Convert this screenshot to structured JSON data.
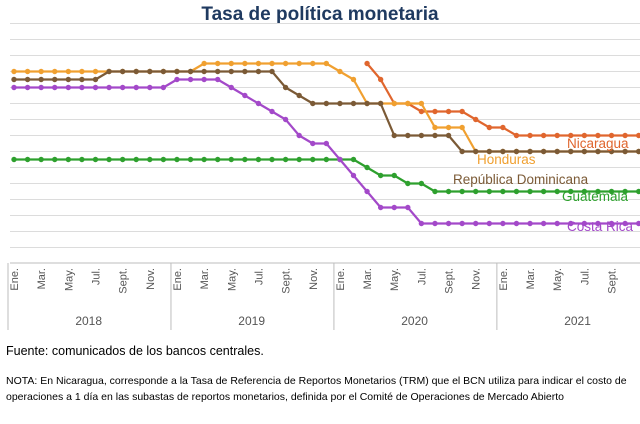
{
  "title": "Tasa de política monetaria",
  "source": "Fuente: comunicados de los bancos centrales.",
  "note": "NOTA: En Nicaragua, corresponde a la Tasa de Referencia de Reportos Monetarios (TRM) que el BCN utiliza para indicar el costo de operaciones a 1 día en las subastas de reportos monetarios, definida por el Comité de Operaciones de Mercado Abierto",
  "chart_data": {
    "type": "line",
    "title": "Tasa de política monetaria",
    "x": [
      "2018-01",
      "2018-02",
      "2018-03",
      "2018-04",
      "2018-05",
      "2018-06",
      "2018-07",
      "2018-08",
      "2018-09",
      "2018-10",
      "2018-11",
      "2018-12",
      "2019-01",
      "2019-02",
      "2019-03",
      "2019-04",
      "2019-05",
      "2019-06",
      "2019-07",
      "2019-08",
      "2019-09",
      "2019-10",
      "2019-11",
      "2019-12",
      "2020-01",
      "2020-02",
      "2020-03",
      "2020-04",
      "2020-05",
      "2020-06",
      "2020-07",
      "2020-08",
      "2020-09",
      "2020-10",
      "2020-11",
      "2020-12",
      "2021-01",
      "2021-02",
      "2021-03",
      "2021-04",
      "2021-05",
      "2021-06",
      "2021-07",
      "2021-08",
      "2021-09",
      "2021-10",
      "2021-11",
      "2021-12"
    ],
    "tick_labels": [
      "Ene.",
      "Mar.",
      "May.",
      "Jul.",
      "Sept.",
      "Nov.",
      "Ene.",
      "Mar.",
      "May.",
      "Jul.",
      "Sept.",
      "Nov.",
      "Ene.",
      "Mar.",
      "May.",
      "Jul.",
      "Sept.",
      "Nov.",
      "Ene.",
      "Mar.",
      "May.",
      "Jul.",
      "Sept."
    ],
    "years": [
      "2018",
      "2019",
      "2020",
      "2021"
    ],
    "ylim": [
      0,
      7
    ],
    "grid": true,
    "series": [
      {
        "name": "Nicaragua",
        "color": "#e0662e",
        "values": [
          null,
          null,
          null,
          null,
          null,
          null,
          null,
          null,
          null,
          null,
          null,
          null,
          null,
          null,
          null,
          null,
          null,
          null,
          null,
          null,
          null,
          null,
          null,
          null,
          null,
          null,
          5.75,
          5.25,
          4.5,
          4.5,
          4.25,
          4.25,
          4.25,
          4.25,
          4.0,
          3.75,
          3.75,
          3.5,
          3.5,
          3.5,
          3.5,
          3.5,
          3.5,
          3.5,
          3.5,
          3.5,
          3.5,
          3.5
        ]
      },
      {
        "name": "Honduras",
        "color": "#f0a030",
        "values": [
          5.5,
          5.5,
          5.5,
          5.5,
          5.5,
          5.5,
          5.5,
          5.5,
          5.5,
          5.5,
          5.5,
          5.5,
          5.5,
          5.5,
          5.75,
          5.75,
          5.75,
          5.75,
          5.75,
          5.75,
          5.75,
          5.75,
          5.75,
          5.75,
          5.5,
          5.25,
          4.5,
          4.5,
          4.5,
          4.5,
          4.5,
          3.75,
          3.75,
          3.75,
          3.0,
          3.0,
          3.0,
          3.0,
          3.0,
          3.0,
          3.0,
          3.0,
          3.0,
          3.0,
          3.0,
          3.0,
          3.0,
          3.0
        ]
      },
      {
        "name": "República Dominicana",
        "color": "#7b5a36",
        "values": [
          5.25,
          5.25,
          5.25,
          5.25,
          5.25,
          5.25,
          5.25,
          5.5,
          5.5,
          5.5,
          5.5,
          5.5,
          5.5,
          5.5,
          5.5,
          5.5,
          5.5,
          5.5,
          5.5,
          5.5,
          5.0,
          4.75,
          4.5,
          4.5,
          4.5,
          4.5,
          4.5,
          4.5,
          3.5,
          3.5,
          3.5,
          3.5,
          3.5,
          3.0,
          3.0,
          3.0,
          3.0,
          3.0,
          3.0,
          3.0,
          3.0,
          3.0,
          3.0,
          3.0,
          3.0,
          3.0,
          3.0,
          3.0
        ]
      },
      {
        "name": "Guatemala",
        "color": "#2ea02e",
        "values": [
          2.75,
          2.75,
          2.75,
          2.75,
          2.75,
          2.75,
          2.75,
          2.75,
          2.75,
          2.75,
          2.75,
          2.75,
          2.75,
          2.75,
          2.75,
          2.75,
          2.75,
          2.75,
          2.75,
          2.75,
          2.75,
          2.75,
          2.75,
          2.75,
          2.75,
          2.75,
          2.5,
          2.25,
          2.25,
          2.0,
          2.0,
          1.75,
          1.75,
          1.75,
          1.75,
          1.75,
          1.75,
          1.75,
          1.75,
          1.75,
          1.75,
          1.75,
          1.75,
          1.75,
          1.75,
          1.75,
          1.75,
          1.75
        ]
      },
      {
        "name": "Costa Rica",
        "color": "#a349c9",
        "values": [
          5.0,
          5.0,
          5.0,
          5.0,
          5.0,
          5.0,
          5.0,
          5.0,
          5.0,
          5.0,
          5.0,
          5.0,
          5.25,
          5.25,
          5.25,
          5.25,
          5.0,
          4.75,
          4.5,
          4.25,
          4.0,
          3.5,
          3.25,
          3.25,
          2.75,
          2.25,
          1.75,
          1.25,
          1.25,
          1.25,
          0.75,
          0.75,
          0.75,
          0.75,
          0.75,
          0.75,
          0.75,
          0.75,
          0.75,
          0.75,
          0.75,
          0.75,
          0.75,
          0.75,
          0.75,
          0.75,
          0.75,
          0.75
        ]
      }
    ]
  }
}
